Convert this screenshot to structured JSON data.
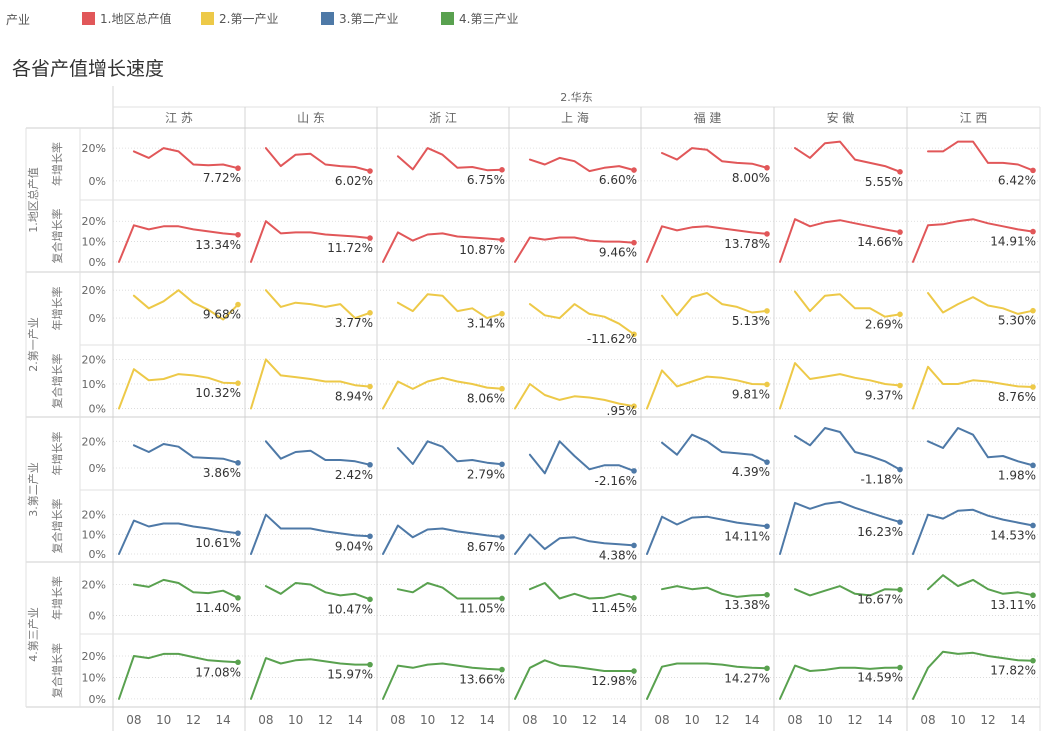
{
  "legend": {
    "title": "产业",
    "items": [
      {
        "label": "1.地区总产值",
        "color": "#E15759"
      },
      {
        "label": "2.第一产业",
        "color": "#EDC948"
      },
      {
        "label": "3.第二产业",
        "color": "#4E79A7"
      },
      {
        "label": "4.第三产业",
        "color": "#59A14F"
      }
    ]
  },
  "title": "各省产值增长速度",
  "chart_data": {
    "type": "line",
    "region": "2.华东",
    "provinces": [
      "江 苏",
      "山 东",
      "浙 江",
      "上 海",
      "福 建",
      "安 徽",
      "江 西"
    ],
    "x": [
      2007,
      2008,
      2009,
      2010,
      2011,
      2012,
      2013,
      2014,
      2015
    ],
    "x_ticks": [
      {
        "value": 2008,
        "label": "08"
      },
      {
        "value": 2010,
        "label": "10"
      },
      {
        "value": 2012,
        "label": "12"
      },
      {
        "value": 2014,
        "label": "14"
      }
    ],
    "groups": [
      {
        "name": "1.地区总产值",
        "color": "#E15759",
        "rows": [
          {
            "label": "年增长率",
            "ylim": [
              -0.08,
              0.28
            ],
            "ticks": [
              {
                "value": 0.2,
                "label": "20%"
              },
              {
                "value": 0,
                "label": "0%"
              }
            ],
            "end_labels": [
              "7.72%",
              "6.02%",
              "6.75%",
              "6.60%",
              "8.00%",
              "5.55%",
              "6.42%"
            ],
            "series": [
              [
                0.18,
                0.14,
                0.2,
                0.18,
                0.1,
                0.095,
                0.1,
                0.0772
              ],
              [
                0.2,
                0.09,
                0.16,
                0.165,
                0.1,
                0.09,
                0.085,
                0.0602
              ],
              [
                0.15,
                0.07,
                0.2,
                0.16,
                0.08,
                0.085,
                0.065,
                0.0675
              ],
              [
                0.13,
                0.1,
                0.14,
                0.12,
                0.06,
                0.08,
                0.09,
                0.066
              ],
              [
                0.17,
                0.13,
                0.2,
                0.19,
                0.12,
                0.11,
                0.105,
                0.08
              ],
              [
                0.2,
                0.14,
                0.23,
                0.24,
                0.13,
                0.11,
                0.09,
                0.0555
              ],
              [
                0.18,
                0.18,
                0.24,
                0.24,
                0.11,
                0.11,
                0.1,
                0.0642
              ]
            ]
          },
          {
            "label": "复合增长率",
            "ylim": [
              -0.02,
              0.27
            ],
            "ticks": [
              {
                "value": 0.2,
                "label": "20%"
              },
              {
                "value": 0.1,
                "label": "10%"
              },
              {
                "value": 0,
                "label": "0%"
              }
            ],
            "end_labels": [
              "13.34%",
              "11.72%",
              "10.87%",
              "9.46%",
              "13.78%",
              "14.66%",
              "14.91%"
            ],
            "series": [
              [
                0,
                0.18,
                0.16,
                0.175,
                0.175,
                0.16,
                0.15,
                0.14,
                0.1334
              ],
              [
                0,
                0.2,
                0.14,
                0.145,
                0.145,
                0.135,
                0.13,
                0.125,
                0.1172
              ],
              [
                0,
                0.145,
                0.105,
                0.135,
                0.14,
                0.125,
                0.12,
                0.115,
                0.1087
              ],
              [
                0,
                0.12,
                0.11,
                0.12,
                0.12,
                0.105,
                0.1,
                0.1,
                0.0946
              ],
              [
                0,
                0.175,
                0.155,
                0.17,
                0.175,
                0.165,
                0.155,
                0.145,
                0.1378
              ],
              [
                0,
                0.21,
                0.175,
                0.195,
                0.205,
                0.19,
                0.175,
                0.16,
                0.1466
              ],
              [
                0,
                0.18,
                0.185,
                0.2,
                0.21,
                0.19,
                0.175,
                0.16,
                0.1491
              ]
            ]
          }
        ]
      },
      {
        "name": "2.第一产业",
        "color": "#EDC948",
        "rows": [
          {
            "label": "年增长率",
            "ylim": [
              -0.15,
              0.28
            ],
            "ticks": [
              {
                "value": 0.2,
                "label": "20%"
              },
              {
                "value": 0,
                "label": "0%"
              }
            ],
            "end_labels": [
              "9.68%",
              "3.77%",
              "3.14%",
              "-11.62%",
              "5.13%",
              "2.69%",
              "5.30%"
            ],
            "series": [
              [
                0.16,
                0.07,
                0.12,
                0.2,
                0.11,
                0.06,
                -0.01,
                0.0968
              ],
              [
                0.2,
                0.08,
                0.11,
                0.1,
                0.08,
                0.1,
                0.0,
                0.0377
              ],
              [
                0.11,
                0.05,
                0.17,
                0.16,
                0.05,
                0.07,
                0.0,
                0.0314
              ],
              [
                0.1,
                0.02,
                0.0,
                0.1,
                0.03,
                0.01,
                -0.04,
                -0.1162
              ],
              [
                0.16,
                0.02,
                0.15,
                0.18,
                0.1,
                0.08,
                0.04,
                0.0513
              ],
              [
                0.19,
                0.05,
                0.16,
                0.17,
                0.07,
                0.07,
                0.01,
                0.0269
              ],
              [
                0.18,
                0.04,
                0.1,
                0.15,
                0.09,
                0.07,
                0.03,
                0.053
              ]
            ]
          },
          {
            "label": "复合增长率",
            "ylim": [
              -0.01,
              0.23
            ],
            "ticks": [
              {
                "value": 0.2,
                "label": "20%"
              },
              {
                "value": 0.1,
                "label": "10%"
              },
              {
                "value": 0,
                "label": "0%"
              }
            ],
            "end_labels": [
              "10.32%",
              "8.94%",
              "8.06%",
              ".95%",
              "9.81%",
              "9.37%",
              "8.76%"
            ],
            "series": [
              [
                0,
                0.16,
                0.115,
                0.12,
                0.14,
                0.135,
                0.125,
                0.105,
                0.1032
              ],
              [
                0,
                0.2,
                0.135,
                0.128,
                0.12,
                0.11,
                0.11,
                0.095,
                0.0894
              ],
              [
                0,
                0.11,
                0.08,
                0.11,
                0.125,
                0.11,
                0.1,
                0.085,
                0.0806
              ],
              [
                0,
                0.1,
                0.055,
                0.035,
                0.05,
                0.045,
                0.035,
                0.02,
                0.0095
              ],
              [
                0,
                0.155,
                0.09,
                0.11,
                0.13,
                0.125,
                0.115,
                0.1,
                0.0981
              ],
              [
                0,
                0.185,
                0.12,
                0.13,
                0.14,
                0.125,
                0.115,
                0.1,
                0.0937
              ],
              [
                0,
                0.17,
                0.1,
                0.1,
                0.115,
                0.11,
                0.1,
                0.09,
                0.0876
              ]
            ]
          }
        ]
      },
      {
        "name": "3.第二产业",
        "color": "#4E79A7",
        "rows": [
          {
            "label": "年增长率",
            "ylim": [
              -0.12,
              0.33
            ],
            "ticks": [
              {
                "value": 0.2,
                "label": "20%"
              },
              {
                "value": 0,
                "label": "0%"
              }
            ],
            "end_labels": [
              "3.86%",
              "2.42%",
              "2.79%",
              "-2.16%",
              "4.39%",
              "-1.18%",
              "1.98%"
            ],
            "series": [
              [
                0.17,
                0.12,
                0.18,
                0.16,
                0.08,
                0.075,
                0.07,
                0.0386
              ],
              [
                0.2,
                0.07,
                0.12,
                0.13,
                0.06,
                0.06,
                0.05,
                0.0242
              ],
              [
                0.15,
                0.03,
                0.2,
                0.16,
                0.05,
                0.06,
                0.04,
                0.0279
              ],
              [
                0.1,
                -0.04,
                0.2,
                0.09,
                -0.01,
                0.02,
                0.02,
                -0.0216
              ],
              [
                0.19,
                0.1,
                0.25,
                0.2,
                0.12,
                0.11,
                0.1,
                0.0439
              ],
              [
                0.24,
                0.17,
                0.3,
                0.27,
                0.12,
                0.09,
                0.05,
                -0.0118
              ],
              [
                0.2,
                0.15,
                0.3,
                0.25,
                0.08,
                0.09,
                0.05,
                0.0198
              ]
            ]
          },
          {
            "label": "复合增长率",
            "ylim": [
              -0.01,
              0.29
            ],
            "ticks": [
              {
                "value": 0.2,
                "label": "20%"
              },
              {
                "value": 0.1,
                "label": "10%"
              },
              {
                "value": 0,
                "label": "0%"
              }
            ],
            "end_labels": [
              "10.61%",
              "9.04%",
              "8.67%",
              "4.38%",
              "14.11%",
              "16.23%",
              "14.53%"
            ],
            "series": [
              [
                0,
                0.17,
                0.14,
                0.155,
                0.155,
                0.14,
                0.13,
                0.115,
                0.1061
              ],
              [
                0,
                0.2,
                0.13,
                0.13,
                0.13,
                0.115,
                0.105,
                0.095,
                0.0904
              ],
              [
                0,
                0.145,
                0.085,
                0.125,
                0.13,
                0.115,
                0.105,
                0.095,
                0.0867
              ],
              [
                0,
                0.1,
                0.025,
                0.08,
                0.085,
                0.065,
                0.055,
                0.05,
                0.0438
              ],
              [
                0,
                0.19,
                0.15,
                0.185,
                0.19,
                0.175,
                0.16,
                0.15,
                0.1411
              ],
              [
                0,
                0.26,
                0.23,
                0.255,
                0.265,
                0.235,
                0.21,
                0.185,
                0.1623
              ],
              [
                0,
                0.2,
                0.18,
                0.22,
                0.225,
                0.195,
                0.175,
                0.16,
                0.1453
              ]
            ]
          }
        ]
      },
      {
        "name": "4.第三产业",
        "color": "#59A14F",
        "rows": [
          {
            "label": "年增长率",
            "ylim": [
              -0.08,
              0.3
            ],
            "ticks": [
              {
                "value": 0.2,
                "label": "20%"
              },
              {
                "value": 0,
                "label": "0%"
              }
            ],
            "end_labels": [
              "11.40%",
              "10.47%",
              "11.05%",
              "11.45%",
              "13.38%",
              "16.67%",
              "13.11%"
            ],
            "series": [
              [
                0.2,
                0.185,
                0.23,
                0.21,
                0.15,
                0.145,
                0.16,
                0.114
              ],
              [
                0.19,
                0.14,
                0.21,
                0.2,
                0.15,
                0.13,
                0.14,
                0.1047
              ],
              [
                0.17,
                0.15,
                0.21,
                0.18,
                0.11,
                0.11,
                0.11,
                0.1105
              ],
              [
                0.17,
                0.21,
                0.11,
                0.14,
                0.11,
                0.115,
                0.14,
                0.1145
              ],
              [
                0.17,
                0.19,
                0.17,
                0.18,
                0.14,
                0.12,
                0.13,
                0.1338
              ],
              [
                0.17,
                0.13,
                0.16,
                0.19,
                0.14,
                0.13,
                0.17,
                0.1667
              ],
              [
                0.17,
                0.26,
                0.19,
                0.23,
                0.17,
                0.14,
                0.15,
                0.1311
              ]
            ]
          },
          {
            "label": "复合增长率",
            "ylim": [
              -0.01,
              0.27
            ],
            "ticks": [
              {
                "value": 0.2,
                "label": "20%"
              },
              {
                "value": 0.1,
                "label": "10%"
              },
              {
                "value": 0,
                "label": "0%"
              }
            ],
            "end_labels": [
              "17.08%",
              "15.97%",
              "13.66%",
              "12.98%",
              "14.27%",
              "14.59%",
              "17.82%"
            ],
            "series": [
              [
                0,
                0.2,
                0.19,
                0.21,
                0.21,
                0.195,
                0.18,
                0.175,
                0.1708
              ],
              [
                0,
                0.19,
                0.165,
                0.18,
                0.185,
                0.175,
                0.165,
                0.16,
                0.1597
              ],
              [
                0,
                0.155,
                0.145,
                0.16,
                0.165,
                0.155,
                0.145,
                0.14,
                0.1366
              ],
              [
                0,
                0.145,
                0.18,
                0.155,
                0.15,
                0.14,
                0.13,
                0.13,
                0.1298
              ],
              [
                0,
                0.15,
                0.165,
                0.165,
                0.165,
                0.16,
                0.15,
                0.145,
                0.1427
              ],
              [
                0,
                0.155,
                0.13,
                0.135,
                0.145,
                0.145,
                0.14,
                0.145,
                0.1459
              ],
              [
                0,
                0.145,
                0.22,
                0.21,
                0.215,
                0.2,
                0.19,
                0.18,
                0.1782
              ]
            ]
          }
        ]
      }
    ]
  }
}
